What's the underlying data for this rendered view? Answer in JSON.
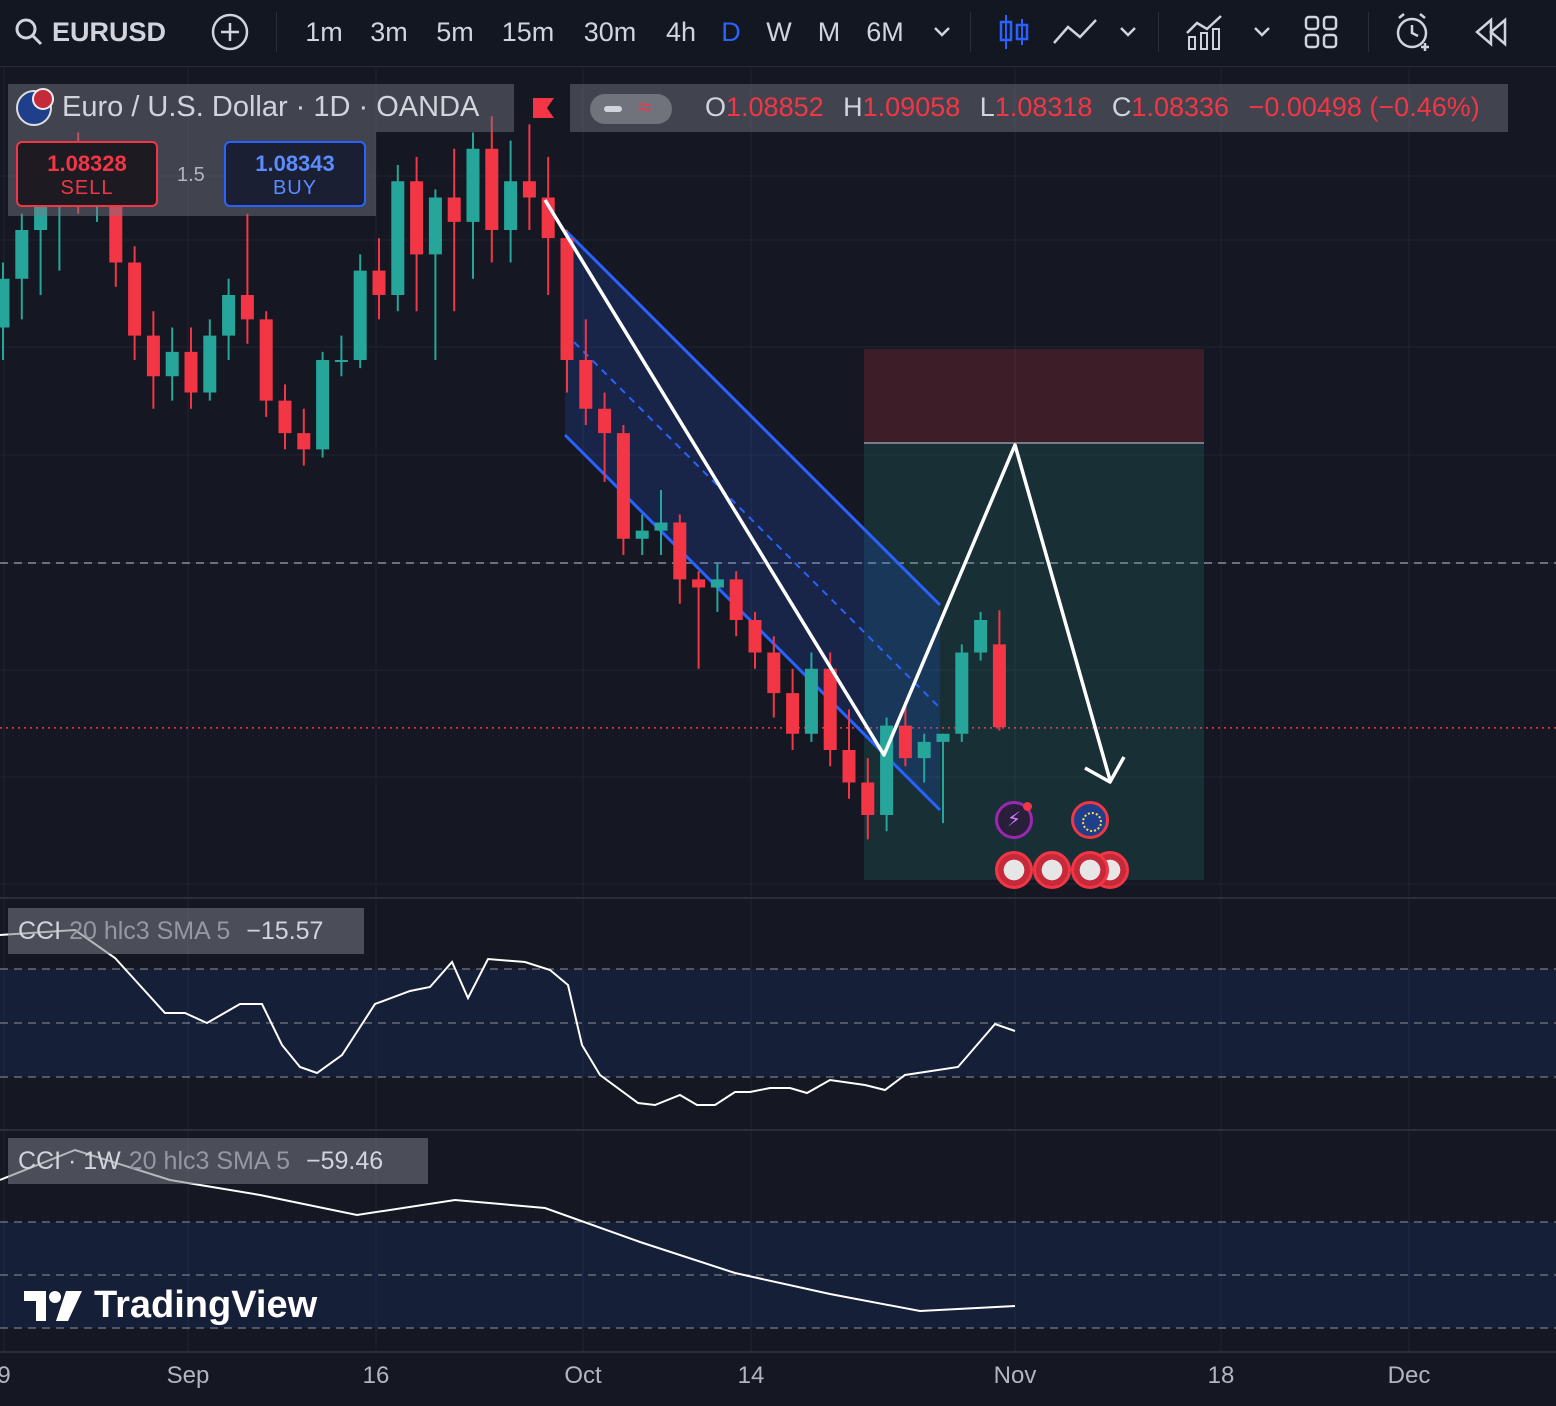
{
  "toolbar": {
    "symbol": "EURUSD",
    "intervals": [
      "1m",
      "3m",
      "5m",
      "15m",
      "30m",
      "4h",
      "D",
      "W",
      "M",
      "6M"
    ],
    "active_interval": "D",
    "icons": [
      "search-icon",
      "add-symbol-icon",
      "chevron-down-icon",
      "candles-icon",
      "line-chart-icon",
      "indicators-icon",
      "layout-grid-icon",
      "alert-clock-icon",
      "replay-icon"
    ]
  },
  "legend": {
    "title": "Euro / U.S. Dollar · 1D · OANDA",
    "ohlc": {
      "o_label": "O",
      "o": "1.08852",
      "h_label": "H",
      "h": "1.09058",
      "l_label": "L",
      "l": "1.08318",
      "c_label": "C",
      "c": "1.08336",
      "change": "−0.00498 (−0.46%)"
    }
  },
  "trade": {
    "sell_price": "1.08328",
    "sell_label": "SELL",
    "spread": "1.5",
    "buy_price": "1.08343",
    "buy_label": "BUY"
  },
  "indicators": [
    {
      "name": "CCI",
      "params": "20 hlc3 SMA 5",
      "value": "−15.57"
    },
    {
      "name": "CCI · 1W",
      "params": "20 hlc3 SMA 5",
      "value": "−59.46"
    }
  ],
  "x_axis": {
    "labels": [
      "9",
      "Sep",
      "16",
      "Oct",
      "14",
      "Nov",
      "18",
      "Dec"
    ]
  },
  "branding": {
    "logo_text": "TradingView"
  },
  "colors": {
    "up": "#26a69a",
    "down": "#f23645",
    "channel": "#2962ff",
    "accent": "#2962ff"
  },
  "chart_data": {
    "type": "candlestick",
    "symbol": "EURUSD",
    "interval": "1D",
    "candles_ohlc": [
      [
        1.108,
        1.112,
        1.106,
        1.111
      ],
      [
        1.111,
        1.115,
        1.1085,
        1.114
      ],
      [
        1.114,
        1.1165,
        1.11,
        1.1155
      ],
      [
        1.1155,
        1.119,
        1.1115,
        1.119
      ],
      [
        1.119,
        1.12,
        1.115,
        1.1165
      ],
      [
        1.1165,
        1.119,
        1.1145,
        1.118
      ],
      [
        1.118,
        1.1185,
        1.1105,
        1.112
      ],
      [
        1.112,
        1.113,
        1.106,
        1.1075
      ],
      [
        1.1075,
        1.109,
        1.103,
        1.105
      ],
      [
        1.105,
        1.108,
        1.1035,
        1.1065
      ],
      [
        1.1065,
        1.108,
        1.103,
        1.104
      ],
      [
        1.104,
        1.1085,
        1.1035,
        1.1075
      ],
      [
        1.1075,
        1.111,
        1.106,
        1.11
      ],
      [
        1.11,
        1.115,
        1.107,
        1.1085
      ],
      [
        1.1085,
        1.109,
        1.1025,
        1.1035
      ],
      [
        1.1035,
        1.1045,
        1.1005,
        1.1015
      ],
      [
        1.1015,
        1.103,
        1.0995,
        1.1005
      ],
      [
        1.1005,
        1.1065,
        1.1,
        1.106
      ],
      [
        1.106,
        1.1075,
        1.105,
        1.106
      ],
      [
        1.106,
        1.1125,
        1.1055,
        1.1115
      ],
      [
        1.1115,
        1.1135,
        1.1085,
        1.11
      ],
      [
        1.11,
        1.118,
        1.109,
        1.117
      ],
      [
        1.117,
        1.1185,
        1.109,
        1.1125
      ],
      [
        1.1125,
        1.1165,
        1.106,
        1.116
      ],
      [
        1.116,
        1.119,
        1.109,
        1.1145
      ],
      [
        1.1145,
        1.12,
        1.111,
        1.119
      ],
      [
        1.119,
        1.121,
        1.112,
        1.114
      ],
      [
        1.114,
        1.1195,
        1.112,
        1.117
      ],
      [
        1.117,
        1.1205,
        1.114,
        1.116
      ],
      [
        1.116,
        1.1185,
        1.11,
        1.1135
      ],
      [
        1.1135,
        1.114,
        1.104,
        1.106
      ],
      [
        1.106,
        1.1085,
        1.102,
        1.103
      ],
      [
        1.103,
        1.104,
        1.0985,
        1.1015
      ],
      [
        1.1015,
        1.102,
        1.094,
        1.095
      ],
      [
        1.095,
        1.0965,
        1.094,
        1.0955
      ],
      [
        1.0955,
        1.098,
        1.094,
        1.096
      ],
      [
        1.096,
        1.0965,
        1.091,
        1.0925
      ],
      [
        1.0925,
        1.093,
        1.087,
        1.092
      ],
      [
        1.092,
        1.0935,
        1.0905,
        1.0925
      ],
      [
        1.0925,
        1.093,
        1.089,
        1.09
      ],
      [
        1.09,
        1.0905,
        1.087,
        1.088
      ],
      [
        1.088,
        1.089,
        1.084,
        1.0855
      ],
      [
        1.0855,
        1.087,
        1.082,
        1.083
      ],
      [
        1.083,
        1.088,
        1.0825,
        1.087
      ],
      [
        1.087,
        1.088,
        1.081,
        1.082
      ],
      [
        1.082,
        1.0845,
        1.079,
        1.08
      ],
      [
        1.08,
        1.0815,
        1.0765,
        1.078
      ],
      [
        1.078,
        1.084,
        1.077,
        1.0835
      ],
      [
        1.0835,
        1.085,
        1.081,
        1.0815
      ],
      [
        1.0815,
        1.083,
        1.08,
        1.0825
      ],
      [
        1.0825,
        1.083,
        1.0775,
        1.083
      ],
      [
        1.083,
        1.0885,
        1.0825,
        1.088
      ],
      [
        1.088,
        1.0905,
        1.0875,
        1.09
      ],
      [
        1.0885,
        1.0906,
        1.0832,
        1.0834
      ]
    ],
    "price_lines": {
      "current": 1.08336
    },
    "cci_daily_last": -15.57,
    "cci_weekly_last": -59.46
  }
}
